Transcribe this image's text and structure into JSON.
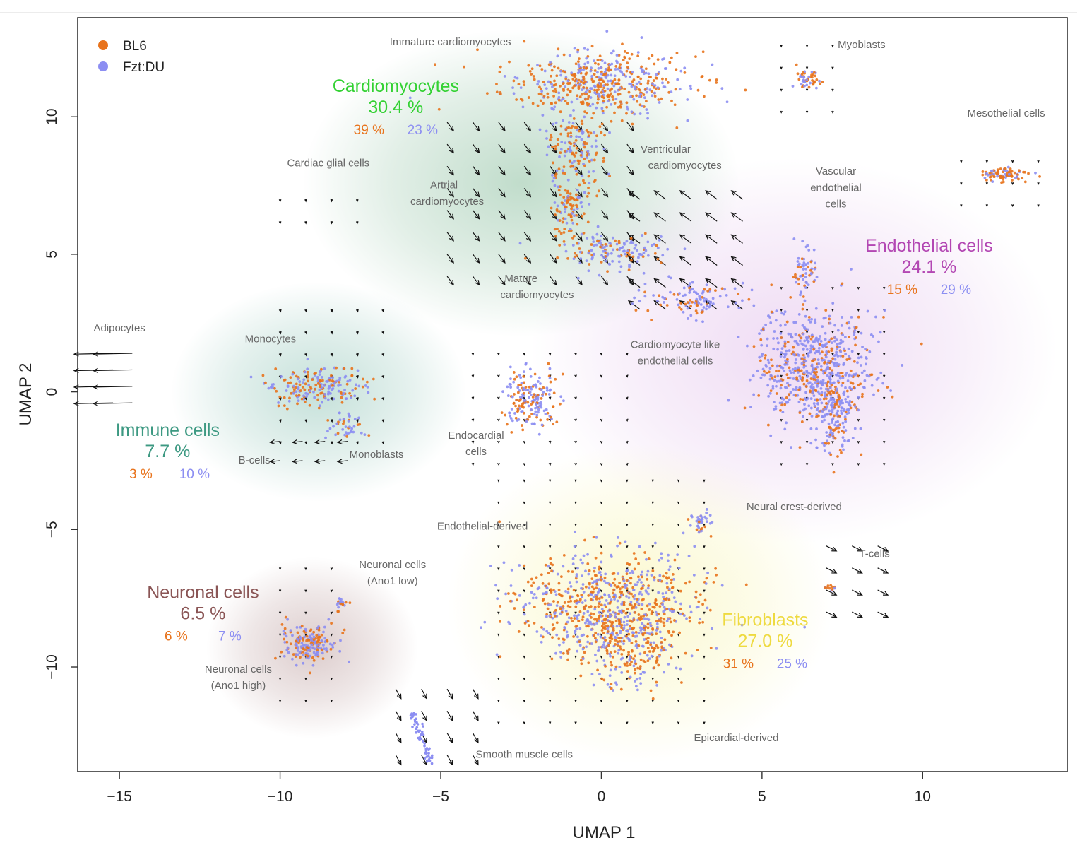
{
  "chart_data": {
    "type": "scatter",
    "xlabel": "UMAP 1",
    "ylabel": "UMAP 2",
    "xlim": [
      -16.3,
      14.5
    ],
    "ylim": [
      -13.8,
      13.6
    ],
    "x_ticks": [
      -15,
      -10,
      -5,
      0,
      5,
      10
    ],
    "y_ticks": [
      -10,
      -5,
      0,
      5,
      10
    ],
    "grid": false,
    "legend_position": "top-left",
    "series": [
      {
        "name": "BL6",
        "color": "#e8731c"
      },
      {
        "name": "Fzt:DU",
        "color": "#8c8ef2"
      }
    ],
    "groups": [
      {
        "name": "Cardiomyocytes",
        "percent": "30.4 %",
        "bl6": "39 %",
        "fzt": "23 %",
        "color": "#33d133",
        "glow": "#2f8c52",
        "lx": -6.4,
        "ly": 10.9,
        "cx": -2.5,
        "cy": 7.6,
        "rx": 6.8,
        "ry": 5.6
      },
      {
        "name": "Endothelial cells",
        "percent": "24.1 %",
        "bl6": "15 %",
        "fzt": "29 %",
        "color": "#b347b3",
        "glow": "#c987d9",
        "lx": 10.2,
        "ly": 5.1,
        "cx": 6.0,
        "cy": 1.5,
        "rx": 8.2,
        "ry": 7.0
      },
      {
        "name": "Immune cells",
        "percent": "7.7 %",
        "bl6": "3 %",
        "fzt": "10 %",
        "color": "#3d9982",
        "glow": "#3d9982",
        "lx": -13.5,
        "ly": -1.6,
        "cx": -8.8,
        "cy": 0.0,
        "rx": 4.6,
        "ry": 4.0
      },
      {
        "name": "Neuronal cells",
        "percent": "6.5 %",
        "bl6": "6 %",
        "fzt": "7 %",
        "color": "#8a5555",
        "glow": "#8a5555",
        "lx": -12.4,
        "ly": -7.5,
        "cx": -9.0,
        "cy": -9.3,
        "rx": 3.3,
        "ry": 3.3
      },
      {
        "name": "Fibroblasts",
        "percent": "27.0 %",
        "bl6": "31 %",
        "fzt": "25 %",
        "color": "#eeda40",
        "glow": "#f0e860",
        "lx": 5.1,
        "ly": -8.5,
        "cx": 1.2,
        "cy": -7.7,
        "rx": 6.0,
        "ry": 5.8
      }
    ],
    "clusters": [
      {
        "name": "Immature cardiomyocytes",
        "lx": -4.7,
        "ly": 12.6,
        "anchor": "middle"
      },
      {
        "name": "Myoblasts",
        "lx": 8.1,
        "ly": 12.5,
        "anchor": "middle"
      },
      {
        "name": "Mesothelial cells",
        "lx": 12.6,
        "ly": 10.0,
        "anchor": "middle"
      },
      {
        "name": "Cardiac glial cells",
        "lx": -8.5,
        "ly": 8.2,
        "anchor": "middle"
      },
      {
        "name": "Ventricular",
        "lx": 2.0,
        "ly": 8.7,
        "anchor": "middle"
      },
      {
        "name": "cardiomyocytes",
        "lx": 2.6,
        "ly": 8.1,
        "anchor": "middle"
      },
      {
        "name": "Vascular",
        "lx": 7.3,
        "ly": 7.9,
        "anchor": "middle"
      },
      {
        "name": "endothelial",
        "lx": 7.3,
        "ly": 7.3,
        "anchor": "middle"
      },
      {
        "name": "cells",
        "lx": 7.3,
        "ly": 6.7,
        "anchor": "middle"
      },
      {
        "name": "Artrial",
        "lx": -4.9,
        "ly": 7.4,
        "anchor": "middle"
      },
      {
        "name": "cardiomyocytes",
        "lx": -4.8,
        "ly": 6.8,
        "anchor": "middle"
      },
      {
        "name": "Mature",
        "lx": -2.5,
        "ly": 4.0,
        "anchor": "middle"
      },
      {
        "name": "cardiomyocytes",
        "lx": -2.0,
        "ly": 3.4,
        "anchor": "middle"
      },
      {
        "name": "Adipocytes",
        "lx": -15.0,
        "ly": 2.2,
        "anchor": "middle"
      },
      {
        "name": "Monocytes",
        "lx": -10.3,
        "ly": 1.8,
        "anchor": "middle"
      },
      {
        "name": "Cardiomyocyte like",
        "lx": 2.3,
        "ly": 1.6,
        "anchor": "middle"
      },
      {
        "name": "endothelial cells",
        "lx": 2.3,
        "ly": 1.0,
        "anchor": "middle"
      },
      {
        "name": "Endocardial",
        "lx": -3.9,
        "ly": -1.7,
        "anchor": "middle"
      },
      {
        "name": "cells",
        "lx": -3.9,
        "ly": -2.3,
        "anchor": "middle"
      },
      {
        "name": "B-cells",
        "lx": -10.8,
        "ly": -2.6,
        "anchor": "middle"
      },
      {
        "name": "Monoblasts",
        "lx": -7.0,
        "ly": -2.4,
        "anchor": "middle"
      },
      {
        "name": "Neural crest-derived",
        "lx": 6.0,
        "ly": -4.3,
        "anchor": "middle"
      },
      {
        "name": "Endothelial-derived",
        "lx": -3.7,
        "ly": -5.0,
        "anchor": "middle"
      },
      {
        "name": "T-cells",
        "lx": 8.5,
        "ly": -6.0,
        "anchor": "middle"
      },
      {
        "name": "Neuronal cells",
        "lx": -6.5,
        "ly": -6.4,
        "anchor": "middle"
      },
      {
        "name": "(Ano1 low)",
        "lx": -6.5,
        "ly": -7.0,
        "anchor": "middle"
      },
      {
        "name": "Neuronal cells",
        "lx": -11.3,
        "ly": -10.2,
        "anchor": "middle"
      },
      {
        "name": "(Ano1 high)",
        "lx": -11.3,
        "ly": -10.8,
        "anchor": "middle"
      },
      {
        "name": "Epicardial-derived",
        "lx": 4.2,
        "ly": -12.7,
        "anchor": "middle"
      },
      {
        "name": "Smooth muscle cells",
        "lx": -2.4,
        "ly": -13.3,
        "anchor": "middle"
      }
    ]
  }
}
